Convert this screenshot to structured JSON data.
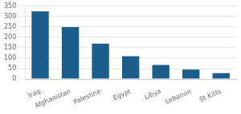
{
  "chart_data": {
    "type": "bar",
    "categories": [
      "Iraq",
      "Afghanistan",
      "Palestine",
      "Egypt",
      "Libya",
      "Lebanon",
      "St Kitts"
    ],
    "values": [
      325,
      250,
      170,
      110,
      67,
      45,
      28
    ],
    "color": "#1b5e8c",
    "ylim": [
      0,
      350
    ],
    "yticks": [
      0,
      50,
      100,
      150,
      200,
      250,
      300,
      350
    ],
    "grid": true
  }
}
